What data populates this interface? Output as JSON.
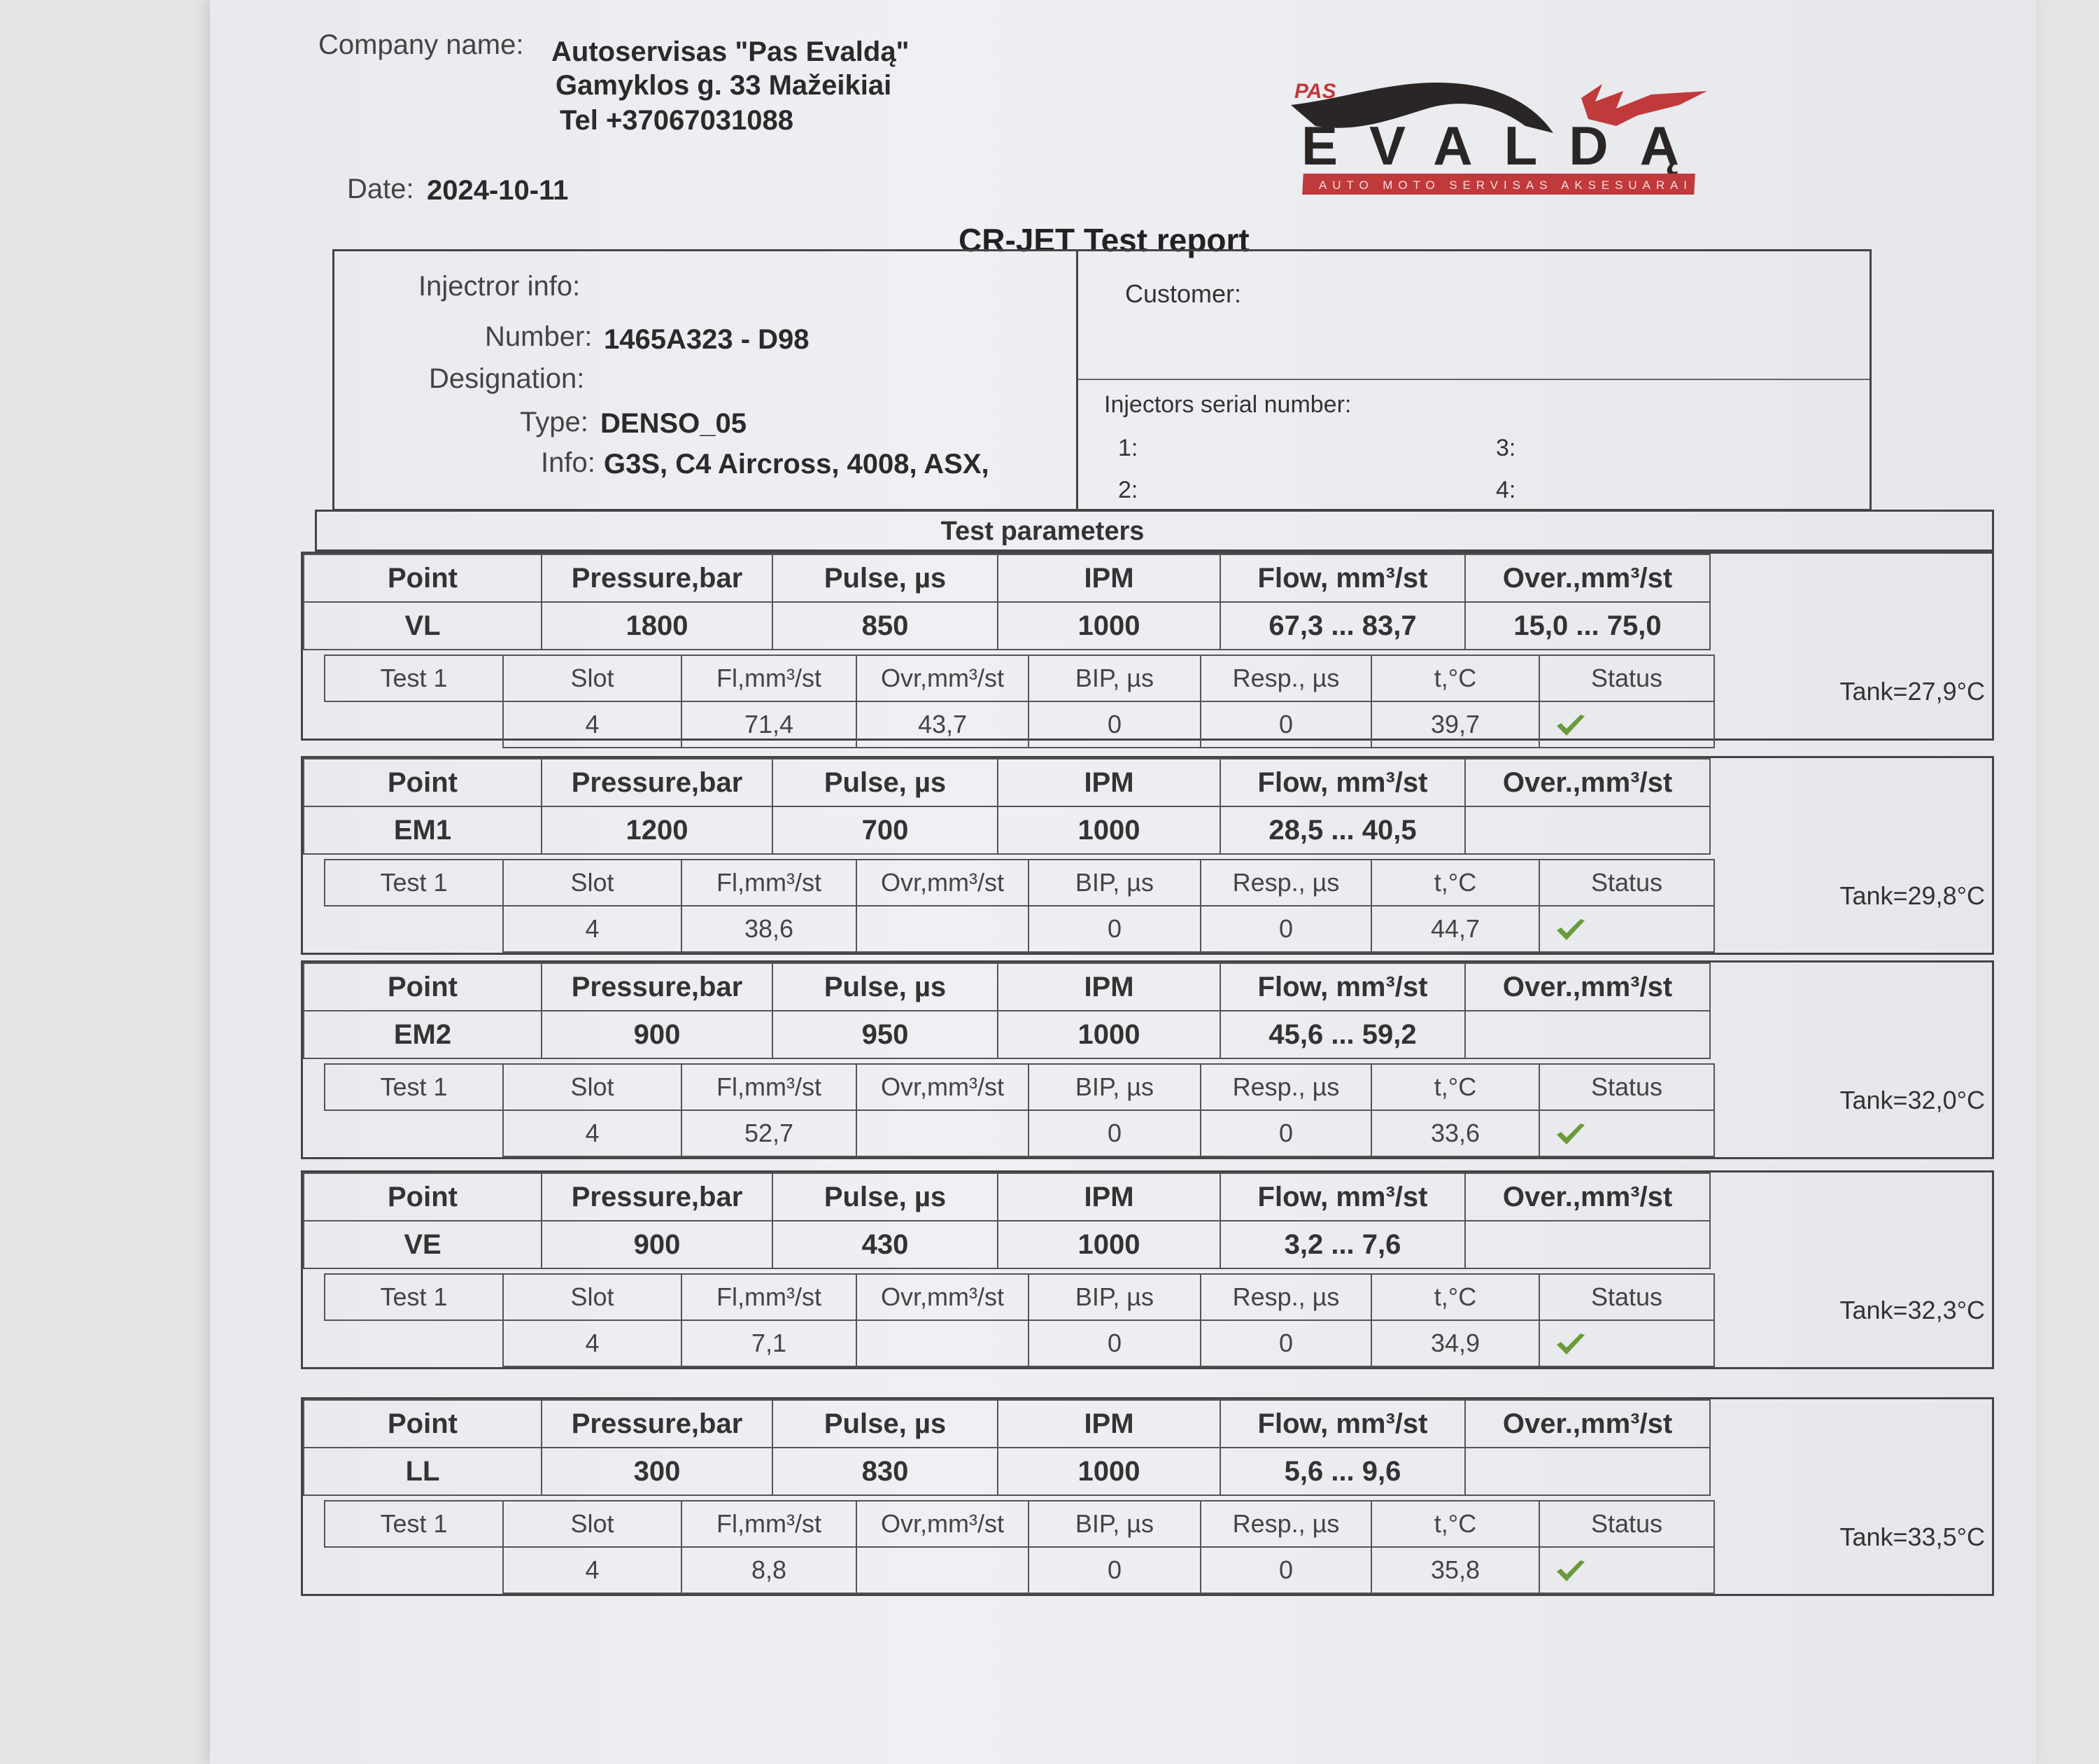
{
  "header": {
    "company_label": "Company name:",
    "company_name": "Autoservisas \"Pas Evaldą\"",
    "address": "Gamyklos g.  33 Mažeikiai",
    "phone": "Tel +37067031088",
    "date_label": "Date:",
    "date": "2024-10-11",
    "report_title": "CR-JET Test report"
  },
  "logo": {
    "top_text": "PAS",
    "main_text": "EVALDĄ",
    "banner_text": "AUTO MOTO SERVISAS AKSESUARAI",
    "colors": {
      "red": "#c0393b",
      "dark": "#2b2626"
    }
  },
  "injector": {
    "section_label": "Injectror info:",
    "number_label": "Number:",
    "number": "1465A323 - D98",
    "designation_label": "Designation:",
    "type_label": "Type:",
    "type": "DENSO_05",
    "info_label": "Info:",
    "info": "G3S, C4 Aircross, 4008, ASX,"
  },
  "customer": {
    "label": "Customer:",
    "serial_label": "Injectors serial number:",
    "slots": [
      "1:",
      "2:",
      "3:",
      "4:"
    ]
  },
  "test_parameters": {
    "title": "Test parameters",
    "point_headers": [
      "Point",
      "Pressure,bar",
      "Pulse, µs",
      "IPM",
      "Flow, mm³/st",
      "Over.,mm³/st"
    ],
    "test_headers": [
      "Slot",
      "Fl,mm³/st",
      "Ovr,mm³/st",
      "BIP, µs",
      "Resp., µs",
      "t,°C",
      "Status"
    ],
    "status_color": "#6a9a3a",
    "points": [
      {
        "point": "VL",
        "pressure": "1800",
        "pulse": "850",
        "ipm": "1000",
        "flow": "67,3 ... 83,7",
        "over": "15,0 ... 75,0",
        "test_label": "Test 1",
        "slot": "4",
        "fl": "71,4",
        "ovr": "43,7",
        "bip": "0",
        "resp": "0",
        "t": "39,7",
        "status": "ok",
        "tank": "Tank=27,9°C"
      },
      {
        "point": "EM1",
        "pressure": "1200",
        "pulse": "700",
        "ipm": "1000",
        "flow": "28,5 ... 40,5",
        "over": "",
        "test_label": "Test 1",
        "slot": "4",
        "fl": "38,6",
        "ovr": "",
        "bip": "0",
        "resp": "0",
        "t": "44,7",
        "status": "ok",
        "tank": "Tank=29,8°C"
      },
      {
        "point": "EM2",
        "pressure": "900",
        "pulse": "950",
        "ipm": "1000",
        "flow": "45,6 ... 59,2",
        "over": "",
        "test_label": "Test 1",
        "slot": "4",
        "fl": "52,7",
        "ovr": "",
        "bip": "0",
        "resp": "0",
        "t": "33,6",
        "status": "ok",
        "tank": "Tank=32,0°C"
      },
      {
        "point": "VE",
        "pressure": "900",
        "pulse": "430",
        "ipm": "1000",
        "flow": "3,2 ... 7,6",
        "over": "",
        "test_label": "Test 1",
        "slot": "4",
        "fl": "7,1",
        "ovr": "",
        "bip": "0",
        "resp": "0",
        "t": "34,9",
        "status": "ok",
        "tank": "Tank=32,3°C"
      },
      {
        "point": "LL",
        "pressure": "300",
        "pulse": "830",
        "ipm": "1000",
        "flow": "5,6 ... 9,6",
        "over": "",
        "test_label": "Test 1",
        "slot": "4",
        "fl": "8,8",
        "ovr": "",
        "bip": "0",
        "resp": "0",
        "t": "35,8",
        "status": "ok",
        "tank": "Tank=33,5°C"
      }
    ]
  }
}
